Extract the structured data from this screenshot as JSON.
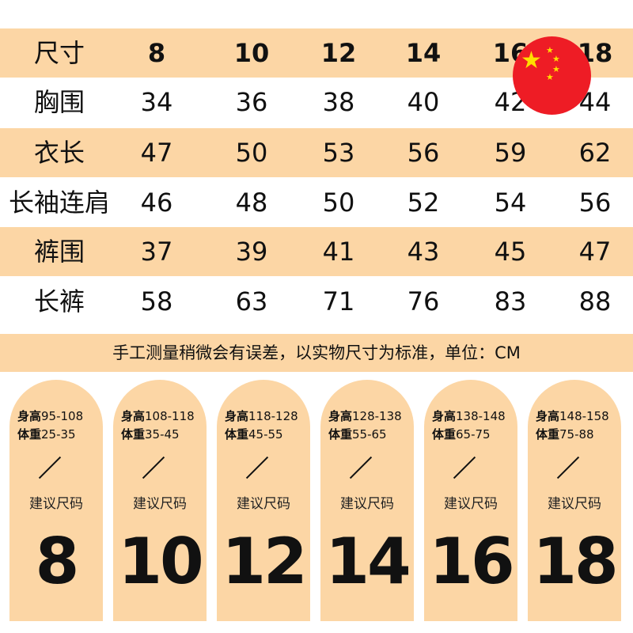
{
  "table": {
    "header": {
      "label": "尺寸",
      "sizes": [
        "8",
        "10",
        "12",
        "14",
        "16",
        "18"
      ]
    },
    "rows": [
      {
        "label": "胸围",
        "values": [
          "34",
          "36",
          "38",
          "40",
          "42",
          "44"
        ]
      },
      {
        "label": "衣长",
        "values": [
          "47",
          "50",
          "53",
          "56",
          "59",
          "62"
        ]
      },
      {
        "label": "长袖连肩",
        "values": [
          "46",
          "48",
          "50",
          "52",
          "54",
          "56"
        ]
      },
      {
        "label": "裤围",
        "values": [
          "37",
          "39",
          "41",
          "43",
          "45",
          "47"
        ]
      },
      {
        "label": "长裤",
        "values": [
          "58",
          "63",
          "71",
          "76",
          "83",
          "88"
        ]
      }
    ]
  },
  "note": "手工测量稍微会有误差，以实物尺寸为标准，单位：CM",
  "cards": [
    {
      "height_label": "身高",
      "height": "95-108",
      "weight_label": "体重",
      "weight": "25-35",
      "suggest": "建议尺码",
      "size": "8"
    },
    {
      "height_label": "身高",
      "height": "108-118",
      "weight_label": "体重",
      "weight": "35-45",
      "suggest": "建议尺码",
      "size": "10"
    },
    {
      "height_label": "身高",
      "height": "118-128",
      "weight_label": "体重",
      "weight": "45-55",
      "suggest": "建议尺码",
      "size": "12"
    },
    {
      "height_label": "身高",
      "height": "128-138",
      "weight_label": "体重",
      "weight": "55-65",
      "suggest": "建议尺码",
      "size": "14"
    },
    {
      "height_label": "身高",
      "height": "138-148",
      "weight_label": "体重",
      "weight": "65-75",
      "suggest": "建议尺码",
      "size": "16"
    },
    {
      "height_label": "身高",
      "height": "148-158",
      "weight_label": "体重",
      "weight": "75-88",
      "suggest": "建议尺码",
      "size": "18"
    }
  ],
  "colors": {
    "band": "#fcd6a5",
    "flag_red": "#ee1c25",
    "flag_star": "#ffde00"
  },
  "icons": {
    "flag": "china-flag-icon"
  }
}
